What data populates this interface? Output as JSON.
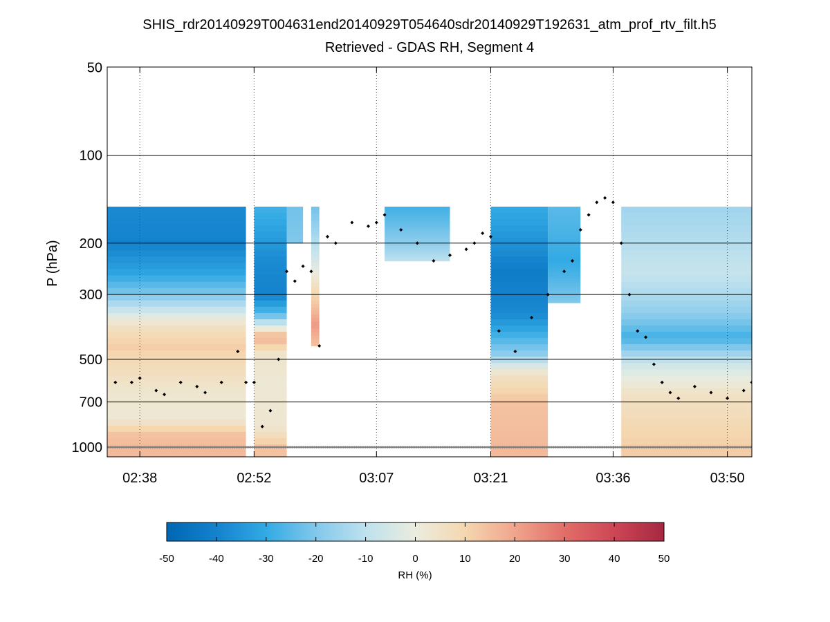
{
  "chart_data": {
    "type": "heatmap",
    "title": "SHIS_rdr20140929T004631end20140929T054640sdr20140929T192631_atm_prof_rtv_filt.h5",
    "subtitle": "Retrieved - GDAS RH, Segment 4",
    "ylabel": "P (hPa)",
    "y_scale": "log",
    "y_reversed": true,
    "ylim": [
      1000,
      50
    ],
    "y_ticks": [
      50,
      100,
      200,
      300,
      500,
      700,
      1000
    ],
    "y_tick_labels": [
      "50",
      "100",
      "200",
      "300",
      "500",
      "700",
      "1000"
    ],
    "y_gridlines": [
      100,
      200,
      300,
      500,
      700,
      1000
    ],
    "x_ticks": [
      "02:38",
      "02:52",
      "03:07",
      "03:21",
      "03:36",
      "03:50"
    ],
    "x_gridlines": "dotted",
    "colorbar": {
      "label": "RH (%)",
      "range": [
        -50,
        50
      ],
      "ticks": [
        -50,
        -40,
        -30,
        -20,
        -10,
        0,
        10,
        20,
        30,
        40,
        50
      ],
      "colormap": "blue-white-red diverging"
    },
    "field_top_pressure_hPa": 150,
    "segments": [
      {
        "x": [
          "02:34",
          "02:51"
        ],
        "bottom_hPa": 1000,
        "profile": [
          [
            150,
            -38
          ],
          [
            200,
            -40
          ],
          [
            250,
            -32
          ],
          [
            300,
            -20
          ],
          [
            380,
            5
          ],
          [
            450,
            12
          ],
          [
            520,
            8
          ],
          [
            650,
            3
          ],
          [
            800,
            2
          ],
          [
            900,
            14
          ],
          [
            1000,
            16
          ]
        ]
      },
      {
        "x": [
          "02:52",
          "02:56"
        ],
        "bottom_hPa": 1000,
        "profile": [
          [
            150,
            -28
          ],
          [
            230,
            -38
          ],
          [
            300,
            -40
          ],
          [
            350,
            -25
          ],
          [
            420,
            18
          ],
          [
            480,
            4
          ],
          [
            600,
            2
          ],
          [
            850,
            3
          ],
          [
            1000,
            14
          ]
        ]
      },
      {
        "x": [
          "02:56",
          "02:58"
        ],
        "bottom_hPa": 200,
        "profile": [
          [
            150,
            -22
          ],
          [
            200,
            -20
          ]
        ]
      },
      {
        "x": [
          "02:59",
          "03:00"
        ],
        "bottom_hPa": 450,
        "profile": [
          [
            150,
            -22
          ],
          [
            300,
            10
          ],
          [
            380,
            22
          ],
          [
            450,
            14
          ]
        ]
      },
      {
        "x": [
          "03:08",
          "03:16"
        ],
        "bottom_hPa": 230,
        "profile": [
          [
            150,
            -28
          ],
          [
            200,
            -18
          ],
          [
            230,
            -10
          ]
        ]
      },
      {
        "x": [
          "03:21",
          "03:28"
        ],
        "bottom_hPa": 1000,
        "profile": [
          [
            150,
            -30
          ],
          [
            250,
            -42
          ],
          [
            350,
            -38
          ],
          [
            480,
            -18
          ],
          [
            560,
            5
          ],
          [
            700,
            14
          ],
          [
            1000,
            16
          ]
        ]
      },
      {
        "x": [
          "03:28",
          "03:32"
        ],
        "bottom_hPa": 320,
        "profile": [
          [
            150,
            -25
          ],
          [
            230,
            -30
          ],
          [
            320,
            -20
          ]
        ]
      },
      {
        "x": [
          "03:37",
          "03:53"
        ],
        "bottom_hPa": 1000,
        "profile": [
          [
            150,
            -15
          ],
          [
            250,
            -8
          ],
          [
            350,
            -18
          ],
          [
            420,
            -28
          ],
          [
            520,
            -6
          ],
          [
            650,
            5
          ],
          [
            800,
            8
          ],
          [
            1000,
            12
          ]
        ]
      }
    ],
    "dot_series": [
      [
        "02:35",
        600
      ],
      [
        "02:37",
        600
      ],
      [
        "02:38",
        580
      ],
      [
        "02:40",
        640
      ],
      [
        "02:41",
        660
      ],
      [
        "02:43",
        600
      ],
      [
        "02:45",
        620
      ],
      [
        "02:46",
        650
      ],
      [
        "02:48",
        600
      ],
      [
        "02:50",
        470
      ],
      [
        "02:51",
        600
      ],
      [
        "02:52",
        600
      ],
      [
        "02:53",
        850
      ],
      [
        "02:54",
        750
      ],
      [
        "02:55",
        500
      ],
      [
        "02:56",
        250
      ],
      [
        "02:57",
        270
      ],
      [
        "02:58",
        240
      ],
      [
        "02:59",
        250
      ],
      [
        "03:00",
        450
      ],
      [
        "03:01",
        190
      ],
      [
        "03:02",
        200
      ],
      [
        "03:04",
        170
      ],
      [
        "03:06",
        175
      ],
      [
        "03:07",
        170
      ],
      [
        "03:08",
        160
      ],
      [
        "03:10",
        180
      ],
      [
        "03:12",
        200
      ],
      [
        "03:14",
        230
      ],
      [
        "03:16",
        220
      ],
      [
        "03:18",
        210
      ],
      [
        "03:19",
        200
      ],
      [
        "03:20",
        185
      ],
      [
        "03:21",
        190
      ],
      [
        "03:22",
        400
      ],
      [
        "03:24",
        470
      ],
      [
        "03:26",
        360
      ],
      [
        "03:28",
        300
      ],
      [
        "03:30",
        250
      ],
      [
        "03:31",
        230
      ],
      [
        "03:32",
        180
      ],
      [
        "03:33",
        160
      ],
      [
        "03:34",
        145
      ],
      [
        "03:35",
        140
      ],
      [
        "03:36",
        145
      ],
      [
        "03:37",
        200
      ],
      [
        "03:38",
        300
      ],
      [
        "03:39",
        400
      ],
      [
        "03:40",
        420
      ],
      [
        "03:41",
        520
      ],
      [
        "03:42",
        600
      ],
      [
        "03:43",
        650
      ],
      [
        "03:44",
        680
      ],
      [
        "03:46",
        620
      ],
      [
        "03:48",
        650
      ],
      [
        "03:50",
        680
      ],
      [
        "03:52",
        640
      ],
      [
        "03:53",
        600
      ]
    ],
    "surface_marker_hPa": 1000
  }
}
